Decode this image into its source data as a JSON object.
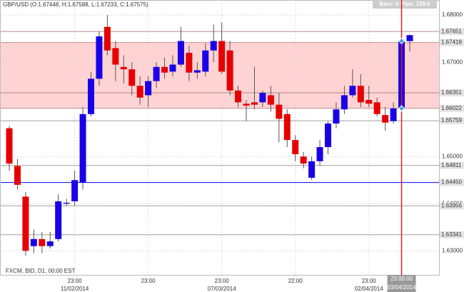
{
  "chart_data": {
    "type": "candlestick",
    "title": "GBP/USD (O:1.67448, H:1.67588, L:1.67233, C:1.67575)",
    "status": "Bars: 0 Pips: 139.6",
    "footer": "FXCM, BID, D1, 00:00 EST",
    "categories": [
      null,
      null,
      null,
      null,
      null,
      null,
      null,
      null,
      "23:00",
      null,
      null,
      null,
      null,
      null,
      null,
      null,
      null,
      "23:00",
      null,
      null,
      null,
      null,
      null,
      null,
      null,
      null,
      "23:00",
      null,
      null,
      null,
      null,
      null,
      null,
      null,
      null,
      "22:00",
      null,
      null,
      null,
      null,
      null,
      null,
      null,
      null,
      "23:00",
      null,
      null,
      null,
      "23:00:00",
      null
    ],
    "dates": [
      null,
      null,
      null,
      null,
      null,
      null,
      null,
      null,
      "11/02/2014",
      null,
      null,
      null,
      null,
      null,
      null,
      null,
      null,
      null,
      null,
      null,
      null,
      null,
      null,
      null,
      null,
      null,
      "07/03/2014",
      null,
      null,
      null,
      null,
      null,
      null,
      null,
      null,
      null,
      null,
      null,
      null,
      null,
      null,
      null,
      null,
      null,
      "02/04/2014",
      null,
      null,
      null,
      "03/04/2014",
      null
    ],
    "open": [
      1.656,
      1.648,
      1.6415,
      1.631,
      1.6325,
      1.631,
      1.6325,
      1.64,
      1.6405,
      1.6445,
      1.659,
      1.6665,
      1.6775,
      1.673,
      1.669,
      1.6685,
      1.665,
      1.663,
      1.666,
      1.669,
      1.668,
      1.6695,
      1.672,
      1.6678,
      1.668,
      1.6725,
      1.6745,
      1.6725,
      1.664,
      1.6612,
      1.6615,
      1.6615,
      1.663,
      1.661,
      1.659,
      1.6535,
      1.65,
      1.6455,
      1.649,
      1.652,
      1.657,
      1.66,
      1.663,
      1.665,
      1.662,
      1.6615,
      1.6588,
      1.6575,
      1.6602,
      1.67448
    ],
    "high": [
      1.6565,
      1.6495,
      1.6425,
      1.6345,
      1.634,
      1.634,
      1.642,
      1.641,
      1.647,
      1.6605,
      1.668,
      1.6765,
      1.68,
      1.6745,
      1.6715,
      1.67,
      1.667,
      1.667,
      1.67,
      1.671,
      1.6715,
      1.6775,
      1.6735,
      1.67,
      1.674,
      1.678,
      1.6785,
      1.6745,
      1.665,
      1.662,
      1.669,
      1.664,
      1.665,
      1.6635,
      1.66,
      1.6545,
      1.651,
      1.65,
      1.6535,
      1.6575,
      1.6615,
      1.665,
      1.6685,
      1.6675,
      1.665,
      1.6625,
      1.6605,
      1.6615,
      1.6752,
      1.67588
    ],
    "low": [
      1.647,
      1.643,
      1.629,
      1.6295,
      1.6295,
      1.6305,
      1.632,
      1.6395,
      1.6395,
      1.643,
      1.6585,
      1.665,
      1.6715,
      1.666,
      1.6655,
      1.663,
      1.661,
      1.6605,
      1.6645,
      1.6665,
      1.667,
      1.669,
      1.666,
      1.6665,
      1.667,
      1.67,
      1.6675,
      1.663,
      1.6605,
      1.6575,
      1.66,
      1.6605,
      1.6595,
      1.653,
      1.652,
      1.649,
      1.6475,
      1.645,
      1.648,
      1.6505,
      1.656,
      1.659,
      1.6625,
      1.6605,
      1.6605,
      1.6585,
      1.6555,
      1.657,
      1.6595,
      1.67233
    ],
    "close": [
      1.6485,
      1.644,
      1.63,
      1.6325,
      1.631,
      1.632,
      1.6405,
      1.6402,
      1.645,
      1.659,
      1.6665,
      1.6755,
      1.6725,
      1.6695,
      1.6685,
      1.665,
      1.6625,
      1.666,
      1.669,
      1.6678,
      1.6695,
      1.6745,
      1.6678,
      1.6683,
      1.6725,
      1.6745,
      1.668,
      1.664,
      1.6615,
      1.6608,
      1.661,
      1.6635,
      1.661,
      1.658,
      1.6535,
      1.6505,
      1.6485,
      1.649,
      1.652,
      1.657,
      1.66,
      1.663,
      1.665,
      1.6615,
      1.6612,
      1.659,
      1.6572,
      1.6602,
      1.6745,
      1.67575
    ],
    "bull_color": "#1a00e6",
    "bear_color": "#e60000",
    "ylim": [
      1.6249,
      1.6832
    ],
    "yticks": [
      {
        "value": 1.68,
        "label": "1.68000"
      },
      {
        "value": 1.67,
        "label": "1.67000"
      },
      {
        "value": 1.65,
        "label": "1.65000"
      },
      {
        "value": 1.64,
        "label": "1.64000"
      },
      {
        "value": 1.63,
        "label": "1.63000"
      }
    ],
    "levels": [
      {
        "value": 1.67651,
        "label": "1.67651",
        "color": "#b08a80"
      },
      {
        "value": 1.67418,
        "label": "1.67418",
        "color": "#c09090",
        "band_edge": true
      },
      {
        "value": 1.66351,
        "label": "1.66351",
        "color": "#b08a80"
      },
      {
        "value": 1.66022,
        "label": "1.66022",
        "color": "#c09090",
        "band_edge": true
      },
      {
        "value": 1.65759,
        "label": "1.65759",
        "color": "#a0a0a0"
      },
      {
        "value": 1.64811,
        "label": "1.64811",
        "color": "#a0a0a0"
      },
      {
        "value": 1.6445,
        "label": "1.64450",
        "color": "#0000ff"
      },
      {
        "value": 1.63956,
        "label": "1.63956",
        "color": "#a0a0a0"
      },
      {
        "value": 1.63341,
        "label": "1.63341",
        "color": "#a0a0a0"
      }
    ],
    "band_color": "#ffc8c8",
    "crosshair_color": "#e02020",
    "grid": true
  }
}
